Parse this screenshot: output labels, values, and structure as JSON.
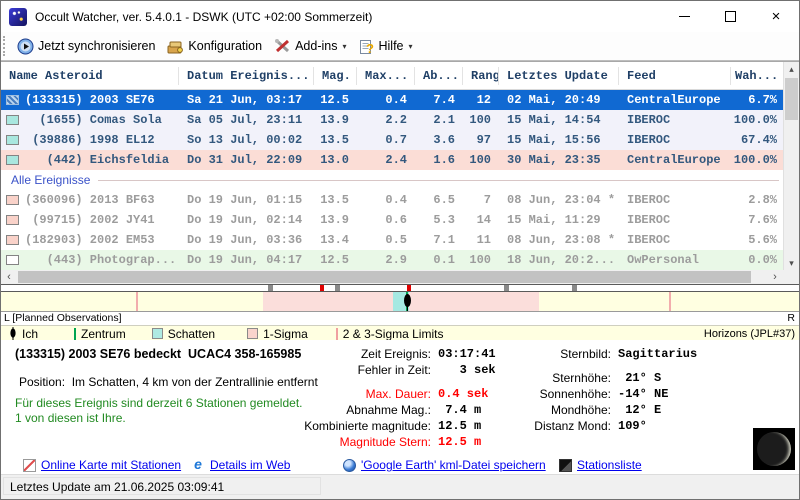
{
  "window": {
    "title": "Occult Watcher, ver. 5.4.0.1 - DSWK (UTC +02:00 Sommerzeit)"
  },
  "toolbar": {
    "sync": "Jetzt synchronisieren",
    "config": "Konfiguration",
    "addins": "Add-ins",
    "help": "Hilfe"
  },
  "table": {
    "columns": [
      "Name Asteroid",
      "Datum Ereignis...",
      "Mag.",
      "Max...",
      "Ab...",
      "Rang",
      "Letztes Update",
      "Feed",
      "Wah..."
    ],
    "separator_label": "Alle Ereignisse",
    "planned_rows": [
      {
        "name": "(133315) 2003 SE76",
        "datum": "Sa 21 Jun, 03:17",
        "mag": "12.5",
        "max": "0.4",
        "ab": "7.4",
        "rang": "12",
        "update": "02 Mai, 20:49",
        "feed": "CentralEurope",
        "wah": "6.7%",
        "style": "selected",
        "marker": "hatch"
      },
      {
        "name": "  (1655) Comas Sola",
        "datum": "Sa 05 Jul, 23:11",
        "mag": "13.9",
        "max": "2.2",
        "ab": "2.1",
        "rang": "100",
        "update": "15 Mai, 14:54",
        "feed": "IBEROC",
        "wah": "100.0%",
        "style": "alt",
        "marker": "cyan"
      },
      {
        "name": " (39886) 1998 EL12",
        "datum": "So 13 Jul, 00:02",
        "mag": "13.5",
        "max": "0.7",
        "ab": "3.6",
        "rang": "97",
        "update": "15 Mai, 15:56",
        "feed": "IBEROC",
        "wah": "67.4%",
        "style": "alt",
        "marker": "cyan"
      },
      {
        "name": "   (442) Eichsfeldia",
        "datum": "Do 31 Jul, 22:09",
        "mag": "13.0",
        "max": "2.4",
        "ab": "1.6",
        "rang": "100",
        "update": "30 Mai, 23:35",
        "feed": "CentralEurope",
        "wah": "100.0%",
        "style": "pink",
        "marker": "cyan"
      }
    ],
    "all_rows": [
      {
        "name": "(360096) 2013 BF63",
        "datum": "Do 19 Jun, 01:15",
        "mag": "13.5",
        "max": "0.4",
        "ab": "6.5",
        "rang": "7",
        "update": "08 Jun, 23:04 *",
        "feed": "IBEROC",
        "wah": "2.8%",
        "style": "plain",
        "marker": "pink"
      },
      {
        "name": " (99715) 2002 JY41",
        "datum": "Do 19 Jun, 02:14",
        "mag": "13.9",
        "max": "0.6",
        "ab": "5.3",
        "rang": "14",
        "update": "15 Mai, 11:29",
        "feed": "IBEROC",
        "wah": "7.6%",
        "style": "plain",
        "marker": "pink"
      },
      {
        "name": "(182903) 2002 EM53",
        "datum": "Do 19 Jun, 03:36",
        "mag": "13.4",
        "max": "0.5",
        "ab": "7.1",
        "rang": "11",
        "update": "08 Jun, 23:08 *",
        "feed": "IBEROC",
        "wah": "5.6%",
        "style": "plain",
        "marker": "pink"
      },
      {
        "name": "   (443) Photograp...",
        "datum": "Do 19 Jun, 04:17",
        "mag": "12.5",
        "max": "2.9",
        "ab": "0.1",
        "rang": "100",
        "update": "18 Jun, 20:2...",
        "feed": "OwPersonal",
        "wah": "0.0%",
        "style": "green",
        "marker": "white"
      }
    ]
  },
  "timeline": {
    "left_label": "L [Planned Observations]",
    "right_label": "R",
    "source": "Horizons (JPL#37)",
    "legend": [
      {
        "label": "Ich"
      },
      {
        "label": "Zentrum"
      },
      {
        "label": "Schatten"
      },
      {
        "label": "1-Sigma"
      },
      {
        "label": "2 & 3-Sigma Limits"
      }
    ]
  },
  "details": {
    "title": "(133315) 2003 SE76 bedeckt  UCAC4 358-165985",
    "position_line": "Position:  Im Schatten, 4 km von der Zentrallinie entfernt",
    "stations_line1": "Für dieses Ereignis sind derzeit 6 Stationen gemeldet.",
    "stations_line2": "1 von diesen ist Ihre.",
    "mid": [
      {
        "label": "Zeit Ereignis:",
        "value": "03:17:41"
      },
      {
        "label": "Fehler in Zeit:",
        "value": "   3 sek"
      },
      {
        "label": "",
        "value": ""
      },
      {
        "label": "Max. Dauer:",
        "value": "0.4 sek",
        "red": true
      },
      {
        "label": "Abnahme Mag.:",
        "value": " 7.4 m"
      },
      {
        "label": "Kombinierte magnitude:",
        "value": "12.5 m"
      },
      {
        "label": "Magnitude Stern:",
        "value": "12.5 m",
        "red": true
      }
    ],
    "right": [
      {
        "label": "Sternbild:",
        "value": "Sagittarius"
      },
      {
        "label": "",
        "value": ""
      },
      {
        "label": "Sternhöhe:",
        "value": " 21° S"
      },
      {
        "label": "Sonnenhöhe:",
        "value": "-14° NE"
      },
      {
        "label": "Mondhöhe:",
        "value": " 12° E"
      },
      {
        "label": "Distanz Mond:",
        "value": "109°"
      }
    ]
  },
  "links": [
    {
      "label": "Online Karte mit Stationen"
    },
    {
      "label": "Details im Web"
    },
    {
      "label": "'Google Earth' kml-Datei speichern"
    },
    {
      "label": "Stationsliste"
    }
  ],
  "statusbar": {
    "text": "Letztes Update am 21.06.2025 03:09:41"
  },
  "colors": {
    "selected_row": "#1069d2",
    "pink_row": "#fbddd6",
    "green_row": "#e9f8e7",
    "sigma1_band": "#fbdedb",
    "shadow_band": "#a5e9e2",
    "center_line": "#00a550",
    "panel_cream": "#ffffe1",
    "link": "#0000ee",
    "warn_red": "#ff0000",
    "ok_green": "#218a21"
  }
}
